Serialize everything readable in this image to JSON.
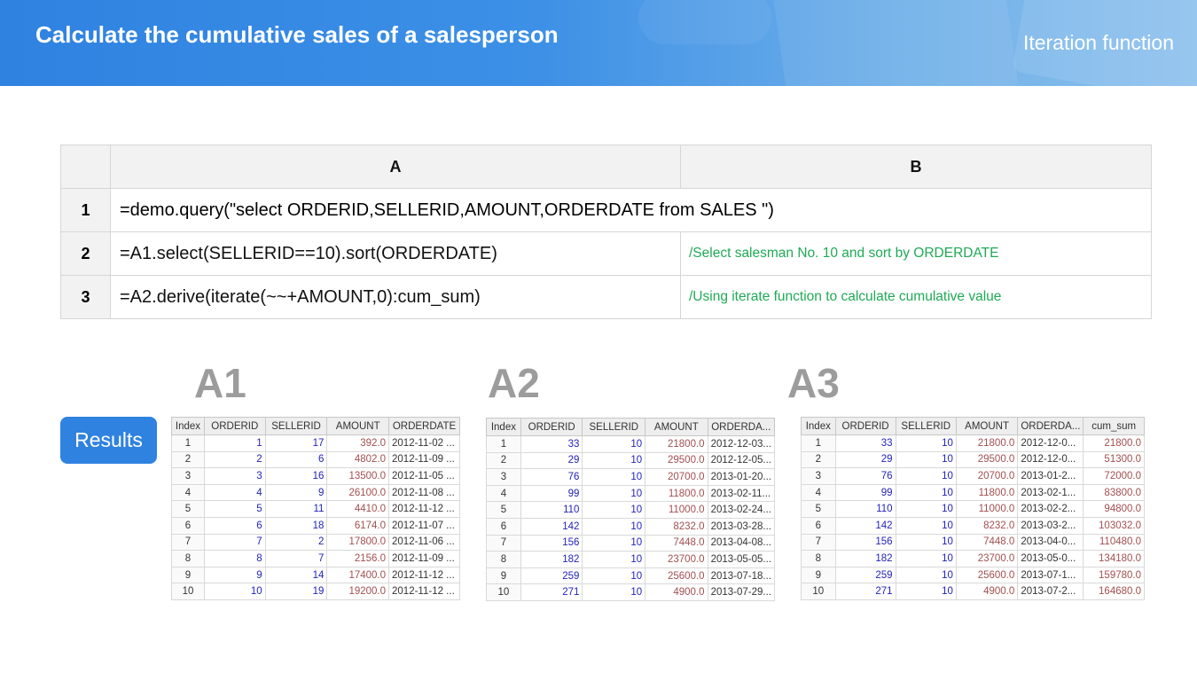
{
  "header": {
    "title": "Calculate the cumulative sales of a salesperson",
    "tag": "Iteration function"
  },
  "grid": {
    "col_a": "A",
    "col_b": "B",
    "rows": [
      {
        "num": "1",
        "code": "=demo.query(\"select  ORDERID,SELLERID,AMOUNT,ORDERDATE  from SALES \")",
        "comment": ""
      },
      {
        "num": "2",
        "code": "=A1.select(SELLERID==10).sort(ORDERDATE)",
        "comment": "/Select salesman No. 10 and sort by ORDERDATE"
      },
      {
        "num": "3",
        "code": "=A2.derive(iterate(~~+AMOUNT,0):cum_sum)",
        "comment": "/Using iterate function to calculate cumulative value"
      }
    ]
  },
  "labels": {
    "a1": "A1",
    "a2": "A2",
    "a3": "A3"
  },
  "results_button": "Results",
  "tables": {
    "a1": {
      "headers": [
        "Index",
        "ORDERID",
        "SELLERID",
        "AMOUNT",
        "ORDERDATE"
      ],
      "rows": [
        [
          "1",
          "1",
          "17",
          "392.0",
          "2012-11-02 ..."
        ],
        [
          "2",
          "2",
          "6",
          "4802.0",
          "2012-11-09 ..."
        ],
        [
          "3",
          "3",
          "16",
          "13500.0",
          "2012-11-05 ..."
        ],
        [
          "4",
          "4",
          "9",
          "26100.0",
          "2012-11-08 ..."
        ],
        [
          "5",
          "5",
          "11",
          "4410.0",
          "2012-11-12 ..."
        ],
        [
          "6",
          "6",
          "18",
          "6174.0",
          "2012-11-07 ..."
        ],
        [
          "7",
          "7",
          "2",
          "17800.0",
          "2012-11-06 ..."
        ],
        [
          "8",
          "8",
          "7",
          "2156.0",
          "2012-11-09 ..."
        ],
        [
          "9",
          "9",
          "14",
          "17400.0",
          "2012-11-12 ..."
        ],
        [
          "10",
          "10",
          "19",
          "19200.0",
          "2012-11-12 ..."
        ]
      ]
    },
    "a2": {
      "headers": [
        "Index",
        "ORDERID",
        "SELLERID",
        "AMOUNT",
        "ORDERDA..."
      ],
      "rows": [
        [
          "1",
          "33",
          "10",
          "21800.0",
          "2012-12-03..."
        ],
        [
          "2",
          "29",
          "10",
          "29500.0",
          "2012-12-05..."
        ],
        [
          "3",
          "76",
          "10",
          "20700.0",
          "2013-01-20..."
        ],
        [
          "4",
          "99",
          "10",
          "11800.0",
          "2013-02-11..."
        ],
        [
          "5",
          "110",
          "10",
          "11000.0",
          "2013-02-24..."
        ],
        [
          "6",
          "142",
          "10",
          "8232.0",
          "2013-03-28..."
        ],
        [
          "7",
          "156",
          "10",
          "7448.0",
          "2013-04-08..."
        ],
        [
          "8",
          "182",
          "10",
          "23700.0",
          "2013-05-05..."
        ],
        [
          "9",
          "259",
          "10",
          "25600.0",
          "2013-07-18..."
        ],
        [
          "10",
          "271",
          "10",
          "4900.0",
          "2013-07-29..."
        ]
      ]
    },
    "a3": {
      "headers": [
        "Index",
        "ORDERID",
        "SELLERID",
        "AMOUNT",
        "ORDERDA...",
        "cum_sum"
      ],
      "rows": [
        [
          "1",
          "33",
          "10",
          "21800.0",
          "2012-12-0...",
          "21800.0"
        ],
        [
          "2",
          "29",
          "10",
          "29500.0",
          "2012-12-0...",
          "51300.0"
        ],
        [
          "3",
          "76",
          "10",
          "20700.0",
          "2013-01-2...",
          "72000.0"
        ],
        [
          "4",
          "99",
          "10",
          "11800.0",
          "2013-02-1...",
          "83800.0"
        ],
        [
          "5",
          "110",
          "10",
          "11000.0",
          "2013-02-2...",
          "94800.0"
        ],
        [
          "6",
          "142",
          "10",
          "8232.0",
          "2013-03-2...",
          "103032.0"
        ],
        [
          "7",
          "156",
          "10",
          "7448.0",
          "2013-04-0...",
          "110480.0"
        ],
        [
          "8",
          "182",
          "10",
          "23700.0",
          "2013-05-0...",
          "134180.0"
        ],
        [
          "9",
          "259",
          "10",
          "25600.0",
          "2013-07-1...",
          "159780.0"
        ],
        [
          "10",
          "271",
          "10",
          "4900.0",
          "2013-07-2...",
          "164680.0"
        ]
      ]
    }
  }
}
